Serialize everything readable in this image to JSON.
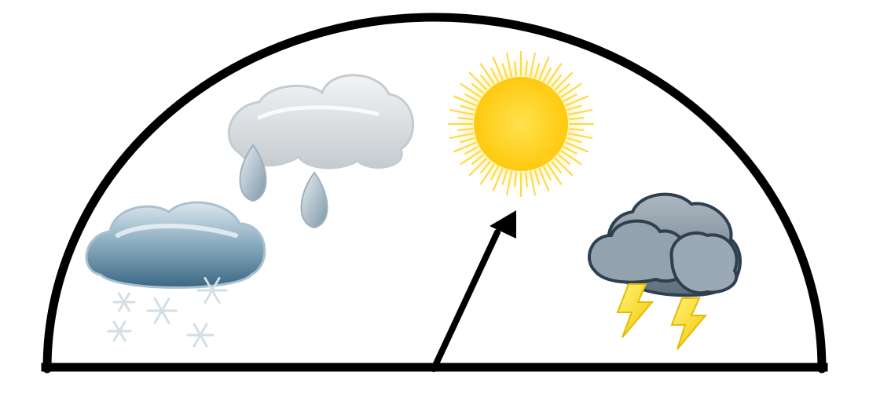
{
  "diagram": {
    "type": "weather-dial",
    "pointer_target": "sunny",
    "sections": [
      {
        "id": "snow",
        "icon": "snow-cloud-icon"
      },
      {
        "id": "rain",
        "icon": "rain-cloud-icon"
      },
      {
        "id": "sunny",
        "icon": "sun-icon"
      },
      {
        "id": "storm",
        "icon": "thunderstorm-icon"
      }
    ]
  },
  "colors": {
    "outline": "#000000",
    "background": "#ffffff",
    "sun_core": "#ffd21a",
    "sun_rays": "#ffd84a",
    "snow_cloud_dark": "#3f6b86",
    "snow_cloud_light": "#c9dbe6",
    "rain_cloud": "#d9dde0",
    "storm_cloud": "#7d8c98",
    "lightning": "#f5dc1e",
    "snowflake": "#d8e3ea"
  }
}
